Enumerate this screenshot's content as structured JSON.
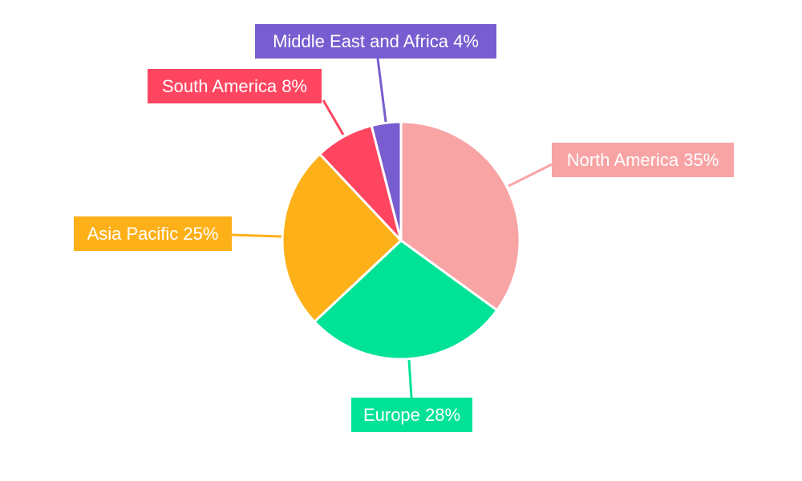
{
  "chart_data": {
    "type": "pie",
    "start_angle": "top, clockwise",
    "slices": [
      {
        "label": "North America",
        "value": 35,
        "text": "North America 35%",
        "color": "#F8A4A5"
      },
      {
        "label": "Europe",
        "value": 28,
        "text": "Europe 28%",
        "color": "#00E396"
      },
      {
        "label": "Asia Pacific",
        "value": 25,
        "text": "Asia Pacific 25%",
        "color": "#FEB019"
      },
      {
        "label": "South America",
        "value": 8,
        "text": "South America 8%",
        "color": "#FF4560"
      },
      {
        "label": "Middle East and Africa",
        "value": 4,
        "text": "Middle East and Africa 4%",
        "color": "#775DD0"
      }
    ]
  }
}
